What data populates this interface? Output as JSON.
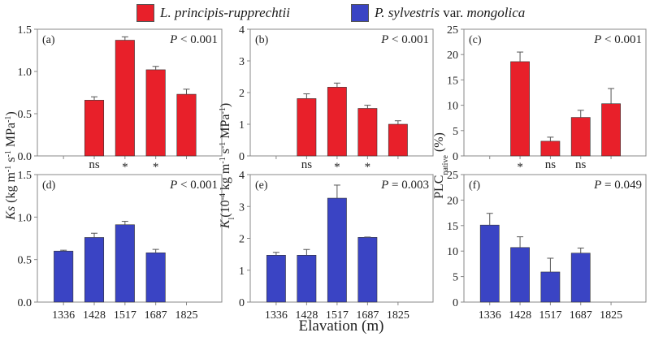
{
  "legend": {
    "items": [
      {
        "name": "L. principis-rupprechtii",
        "color": "#e8202a"
      },
      {
        "name_italic_1": "P. sylvestris",
        "name_plain": " var. ",
        "name_italic_2": "mongolica",
        "name": "P. sylvestris var. mongolica",
        "color": "#3a44c4"
      }
    ]
  },
  "chart_data": [
    {
      "panel": "(a)",
      "type": "bar",
      "title": "",
      "stat": "P < 0.001",
      "series_name": "L. principis-rupprechtii",
      "color": "#e8202a",
      "categories": [
        "1336",
        "1428",
        "1517",
        "1687",
        "1825"
      ],
      "values": [
        null,
        0.66,
        1.37,
        1.02,
        0.73
      ],
      "errors": [
        null,
        0.04,
        0.04,
        0.04,
        0.06
      ],
      "ylim": [
        0,
        1.5
      ],
      "yticks": [
        "0.0",
        "0.5",
        "1.0",
        "1.5"
      ],
      "ytick_values": [
        0,
        0.5,
        1.0,
        1.5
      ],
      "ylabel": "Ks (kg m-1 s-1 MPa-1)",
      "annotations_below": [
        "",
        "ns",
        "*",
        "*",
        ""
      ],
      "show_xtick_labels": false
    },
    {
      "panel": "(b)",
      "type": "bar",
      "stat": "P < 0.001",
      "series_name": "L. principis-rupprechtii",
      "color": "#e8202a",
      "categories": [
        "1336",
        "1428",
        "1517",
        "1687",
        "1825"
      ],
      "values": [
        null,
        1.81,
        2.17,
        1.5,
        1.0
      ],
      "errors": [
        null,
        0.15,
        0.13,
        0.1,
        0.11
      ],
      "ylim": [
        0,
        4
      ],
      "yticks": [
        "0",
        "1",
        "2",
        "3",
        "4"
      ],
      "ytick_values": [
        0,
        1,
        2,
        3,
        4
      ],
      "ylabel": "Kl (10-4 kg m-1 s-1 MPa-1)",
      "annotations_below": [
        "",
        "ns",
        "*",
        "*",
        ""
      ],
      "show_xtick_labels": false
    },
    {
      "panel": "(c)",
      "type": "bar",
      "stat": "P < 0.001",
      "series_name": "L. principis-rupprechtii",
      "color": "#e8202a",
      "categories": [
        "1336",
        "1428",
        "1517",
        "1687",
        "1825"
      ],
      "values": [
        null,
        18.6,
        2.9,
        7.6,
        10.3
      ],
      "errors": [
        null,
        1.9,
        0.8,
        1.4,
        3.0
      ],
      "ylim": [
        0,
        25
      ],
      "yticks": [
        "0",
        "5",
        "10",
        "15",
        "20",
        "25"
      ],
      "ytick_values": [
        0,
        5,
        10,
        15,
        20,
        25
      ],
      "ylabel": "PLCnative (%)",
      "annotations_below": [
        "",
        "*",
        "ns",
        "ns",
        ""
      ],
      "show_xtick_labels": false
    },
    {
      "panel": "(d)",
      "type": "bar",
      "stat": "P < 0.001",
      "series_name": "P. sylvestris var. mongolica",
      "color": "#3a44c4",
      "categories": [
        "1336",
        "1428",
        "1517",
        "1687",
        "1825"
      ],
      "values": [
        0.6,
        0.76,
        0.91,
        0.58,
        null
      ],
      "errors": [
        0.01,
        0.05,
        0.04,
        0.04,
        null
      ],
      "ylim": [
        0,
        1.5
      ],
      "yticks": [
        "0.0",
        "0.5",
        "1.0",
        "1.5"
      ],
      "ytick_values": [
        0,
        0.5,
        1.0,
        1.5
      ],
      "show_xtick_labels": true
    },
    {
      "panel": "(e)",
      "type": "bar",
      "stat": "P = 0.003",
      "series_name": "P. sylvestris var. mongolica",
      "color": "#3a44c4",
      "categories": [
        "1336",
        "1428",
        "1517",
        "1687",
        "1825"
      ],
      "values": [
        1.47,
        1.47,
        3.26,
        2.03,
        null
      ],
      "errors": [
        0.09,
        0.18,
        0.41,
        0.01,
        null
      ],
      "ylim": [
        0,
        4
      ],
      "yticks": [
        "0",
        "1",
        "2",
        "3",
        "4"
      ],
      "ytick_values": [
        0,
        1,
        2,
        3,
        4
      ],
      "xlabel": "Elavation (m)",
      "show_xtick_labels": true
    },
    {
      "panel": "(f)",
      "type": "bar",
      "stat": "P = 0.049",
      "series_name": "P. sylvestris var. mongolica",
      "color": "#3a44c4",
      "categories": [
        "1336",
        "1428",
        "1517",
        "1687",
        "1825"
      ],
      "values": [
        15.1,
        10.7,
        5.9,
        9.6,
        null
      ],
      "errors": [
        2.3,
        2.1,
        2.7,
        1.0,
        null
      ],
      "ylim": [
        0,
        25
      ],
      "yticks": [
        "0",
        "5",
        "10",
        "15",
        "20",
        "25"
      ],
      "ytick_values": [
        0,
        5,
        10,
        15,
        20,
        25
      ],
      "show_xtick_labels": true
    }
  ],
  "ylabels": {
    "ks": {
      "main": "Ks",
      "rest": " (kg m",
      "sup1": "-1",
      "mid1": " s",
      "sup2": "-1",
      "mid2": " MPa",
      "sup3": "-1",
      "end": ")"
    },
    "kl": {
      "main": "K",
      "sub": "l",
      "rest": "(10",
      "sup0": "-4",
      "mid0": " kg m",
      "sup1": "-1",
      "mid1": " s",
      "sup2": "-1",
      "mid2": " MPa",
      "sup3": "-1",
      "end": ")"
    },
    "plc": {
      "main": "PLC",
      "sub": "native",
      "rest": " (%)"
    }
  },
  "xlabel": "Elavation (m)"
}
